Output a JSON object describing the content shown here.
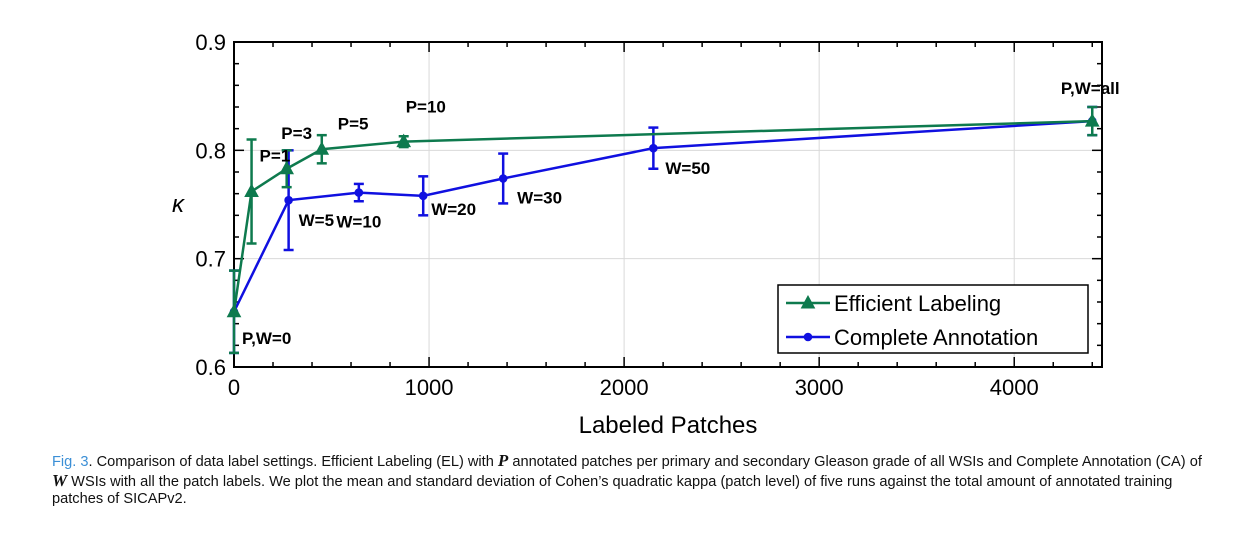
{
  "chart_data": {
    "type": "line",
    "title": "",
    "xlabel": "Labeled Patches",
    "ylabel": "κ",
    "xlim": [
      0,
      4450
    ],
    "ylim": [
      0.6,
      0.9
    ],
    "xticks": [
      0,
      1000,
      2000,
      3000,
      4000
    ],
    "yticks": [
      0.6,
      0.7,
      0.8,
      0.9
    ],
    "xtick_labels": [
      "0",
      "1000",
      "2000",
      "3000",
      "4000"
    ],
    "ytick_labels": [
      "0.6",
      "0.7",
      "0.8",
      "0.9"
    ],
    "grid": true,
    "legend_position": "bottom-right",
    "series": [
      {
        "name": "Efficient Labeling",
        "color": "#0e7a4e",
        "marker": "triangle",
        "x": [
          0,
          90,
          270,
          450,
          870,
          4400
        ],
        "y": [
          0.651,
          0.762,
          0.783,
          0.801,
          0.808,
          0.827
        ],
        "err": [
          0.038,
          0.048,
          0.017,
          0.013,
          0.005,
          0.013
        ]
      },
      {
        "name": "Complete Annotation",
        "color": "#1010e0",
        "marker": "circle",
        "x": [
          0,
          280,
          640,
          970,
          1380,
          2150,
          4400
        ],
        "y": [
          0.651,
          0.754,
          0.761,
          0.758,
          0.774,
          0.802,
          0.827
        ],
        "err": [
          0.038,
          0.046,
          0.008,
          0.018,
          0.023,
          0.019,
          0.013
        ]
      }
    ],
    "annotations": [
      {
        "text": "P,W=0",
        "x": 0,
        "y": 0.651
      },
      {
        "text": "P=1",
        "x": 90,
        "y": 0.762
      },
      {
        "text": "P=3",
        "x": 270,
        "y": 0.783
      },
      {
        "text": "P=5",
        "x": 450,
        "y": 0.801
      },
      {
        "text": "P=10",
        "x": 870,
        "y": 0.808
      },
      {
        "text": "P,W=all",
        "x": 4400,
        "y": 0.827
      },
      {
        "text": "W=5",
        "x": 280,
        "y": 0.754
      },
      {
        "text": "W=10",
        "x": 640,
        "y": 0.761
      },
      {
        "text": "W=20",
        "x": 970,
        "y": 0.758
      },
      {
        "text": "W=30",
        "x": 1380,
        "y": 0.774
      },
      {
        "text": "W=50",
        "x": 2150,
        "y": 0.802
      }
    ]
  },
  "caption": {
    "fig_label": "Fig. 3",
    "text_1": ". Comparison of data label settings. Efficient Labeling (EL) with ",
    "var_p": "P",
    "text_2": " annotated patches per primary and secondary Gleason grade of all WSIs and Complete Annotation (CA) of ",
    "var_w": "W",
    "text_3": " WSIs with all the patch labels. We plot the mean and standard deviation of Cohen’s quadratic kappa (patch level) of five runs against the total amount of annotated training patches of SICAPv2."
  }
}
